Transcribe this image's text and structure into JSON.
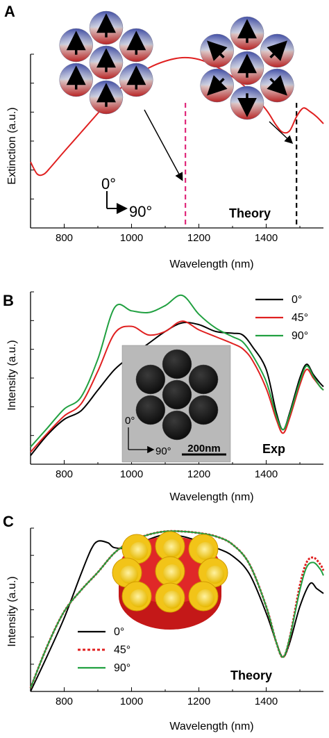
{
  "chart_data": [
    {
      "panel": "A",
      "type": "line",
      "xlabel": "Wavelength (nm)",
      "ylabel": "Extinction (a.u.)",
      "xlim": [
        700,
        1570
      ],
      "xticks": [
        800,
        1000,
        1200,
        1400
      ],
      "ylim": [
        0,
        1
      ],
      "annotation": "Theory",
      "polarization": {
        "vertical": "0°",
        "horizontal": "90°"
      },
      "markers": [
        {
          "x": 1160,
          "color": "#e0287a"
        },
        {
          "x": 1490,
          "color": "#000000"
        }
      ],
      "series": [
        {
          "color": "#e02020",
          "x": [
            700,
            720,
            740,
            760,
            800,
            850,
            900,
            950,
            1000,
            1050,
            1100,
            1150,
            1200,
            1250,
            1300,
            1350,
            1400,
            1430,
            1450,
            1470,
            1490,
            1510,
            1530,
            1550,
            1570
          ],
          "y": [
            0.38,
            0.31,
            0.31,
            0.35,
            0.44,
            0.55,
            0.66,
            0.77,
            0.86,
            0.92,
            0.96,
            0.98,
            0.97,
            0.93,
            0.87,
            0.79,
            0.68,
            0.59,
            0.55,
            0.56,
            0.64,
            0.69,
            0.67,
            0.64,
            0.6
          ]
        }
      ]
    },
    {
      "panel": "B",
      "type": "line",
      "xlabel": "Wavelength (nm)",
      "ylabel": "Intensity (a.u.)",
      "xlim": [
        700,
        1570
      ],
      "xticks": [
        800,
        1000,
        1200,
        1400
      ],
      "ylim": [
        0,
        1
      ],
      "annotation": "Exp",
      "inset": {
        "scalebar": "200nm",
        "polarization": {
          "vertical": "0°",
          "horizontal": "90°"
        }
      },
      "legend_position": "top-right",
      "series": [
        {
          "name": "0°",
          "color": "#000000",
          "x": [
            700,
            750,
            800,
            850,
            900,
            950,
            1000,
            1050,
            1100,
            1150,
            1200,
            1250,
            1300,
            1330,
            1360,
            1400,
            1430,
            1450,
            1470,
            1500,
            1520,
            1540,
            1560,
            1570
          ],
          "y": [
            0.05,
            0.17,
            0.26,
            0.31,
            0.43,
            0.55,
            0.63,
            0.7,
            0.77,
            0.82,
            0.81,
            0.77,
            0.76,
            0.75,
            0.68,
            0.55,
            0.3,
            0.2,
            0.3,
            0.5,
            0.58,
            0.52,
            0.47,
            0.45
          ]
        },
        {
          "name": "45°",
          "color": "#e02020",
          "x": [
            700,
            750,
            800,
            850,
            900,
            950,
            1000,
            1050,
            1100,
            1150,
            1200,
            1250,
            1300,
            1330,
            1360,
            1400,
            1430,
            1450,
            1470,
            1500,
            1520,
            1540,
            1560,
            1570
          ],
          "y": [
            0.07,
            0.18,
            0.28,
            0.35,
            0.54,
            0.76,
            0.8,
            0.75,
            0.77,
            0.83,
            0.78,
            0.74,
            0.7,
            0.67,
            0.6,
            0.44,
            0.26,
            0.18,
            0.27,
            0.46,
            0.55,
            0.5,
            0.45,
            0.43
          ]
        },
        {
          "name": "90°",
          "color": "#20a040",
          "x": [
            700,
            750,
            800,
            850,
            900,
            950,
            1000,
            1050,
            1100,
            1150,
            1200,
            1250,
            1300,
            1330,
            1360,
            1400,
            1430,
            1450,
            1470,
            1500,
            1520,
            1540,
            1560,
            1570
          ],
          "y": [
            0.1,
            0.21,
            0.32,
            0.39,
            0.61,
            0.91,
            0.89,
            0.88,
            0.92,
            0.98,
            0.87,
            0.79,
            0.74,
            0.71,
            0.63,
            0.48,
            0.28,
            0.2,
            0.29,
            0.48,
            0.57,
            0.51,
            0.45,
            0.43
          ]
        }
      ]
    },
    {
      "panel": "C",
      "type": "line",
      "xlabel": "Wavelength (nm)",
      "ylabel": "Intensity (a.u.)",
      "xlim": [
        700,
        1570
      ],
      "xticks": [
        800,
        1000,
        1200,
        1400
      ],
      "ylim": [
        0,
        1
      ],
      "annotation": "Theory",
      "legend_position": "bottom-left",
      "series": [
        {
          "name": "0°",
          "color": "#000000",
          "x": [
            700,
            750,
            800,
            850,
            880,
            900,
            930,
            950,
            1000,
            1050,
            1100,
            1150,
            1200,
            1250,
            1300,
            1350,
            1400,
            1430,
            1450,
            1470,
            1500,
            1530,
            1550,
            1570
          ],
          "y": [
            0.0,
            0.22,
            0.45,
            0.72,
            0.87,
            0.92,
            0.91,
            0.88,
            0.88,
            0.93,
            0.96,
            0.95,
            0.92,
            0.88,
            0.83,
            0.72,
            0.48,
            0.3,
            0.21,
            0.3,
            0.52,
            0.66,
            0.63,
            0.6
          ]
        },
        {
          "name": "45°",
          "color": "#e02020",
          "marker": "square",
          "x": [
            700,
            750,
            800,
            850,
            900,
            950,
            1000,
            1050,
            1100,
            1150,
            1200,
            1250,
            1300,
            1350,
            1400,
            1430,
            1450,
            1470,
            1500,
            1520,
            1540,
            1560,
            1570
          ],
          "y": [
            0.02,
            0.28,
            0.49,
            0.62,
            0.73,
            0.85,
            0.92,
            0.96,
            0.98,
            0.98,
            0.97,
            0.95,
            0.9,
            0.78,
            0.52,
            0.3,
            0.21,
            0.33,
            0.65,
            0.79,
            0.82,
            0.78,
            0.74
          ]
        },
        {
          "name": "90°",
          "color": "#20a040",
          "x": [
            700,
            750,
            800,
            850,
            900,
            950,
            1000,
            1050,
            1100,
            1150,
            1200,
            1250,
            1300,
            1350,
            1400,
            1430,
            1450,
            1470,
            1500,
            1520,
            1540,
            1560,
            1570
          ],
          "y": [
            0.02,
            0.28,
            0.49,
            0.62,
            0.73,
            0.85,
            0.92,
            0.96,
            0.98,
            0.98,
            0.97,
            0.95,
            0.9,
            0.78,
            0.52,
            0.3,
            0.21,
            0.33,
            0.62,
            0.76,
            0.79,
            0.75,
            0.71
          ]
        }
      ]
    }
  ]
}
